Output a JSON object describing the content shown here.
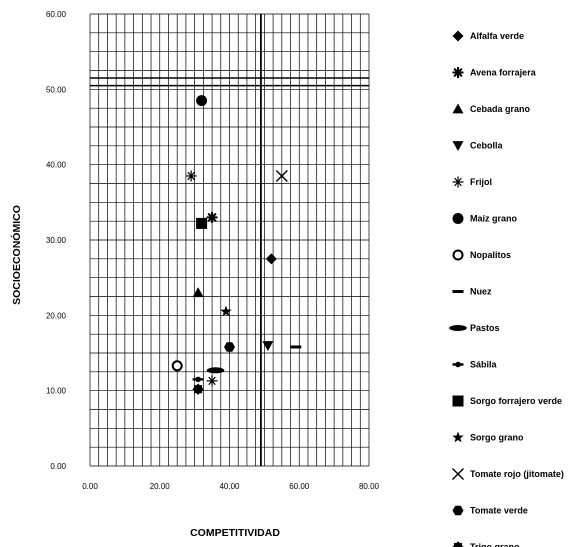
{
  "chart_data": {
    "type": "scatter",
    "xlabel": "COMPETITIVIDAD",
    "ylabel": "SOCIOECONÓMICO",
    "xlim": [
      0,
      80
    ],
    "ylim": [
      0,
      60
    ],
    "x_ticks": [
      "0.00",
      "20.00",
      "40.00",
      "60.00",
      "80.00"
    ],
    "y_ticks": [
      "0.00",
      "10.00",
      "20.00",
      "30.00",
      "40.00",
      "50.00",
      "60.00"
    ],
    "grid_x_step": 2.5,
    "grid_y_step": 2.5,
    "reference_lines": {
      "x": 49.0,
      "y": [
        50.5,
        51.5
      ]
    },
    "legend_position": "right",
    "series": [
      {
        "name": "Alfalfa verde",
        "marker": "diamond",
        "x": 52.0,
        "y": 27.5
      },
      {
        "name": "Avena forrajera",
        "marker": "asterisk",
        "x": 35.0,
        "y": 33.0
      },
      {
        "name": "Cebada grano",
        "marker": "triangle-up",
        "x": 31.0,
        "y": 23.0
      },
      {
        "name": "Cebolla",
        "marker": "triangle-down",
        "x": 51.0,
        "y": 16.0
      },
      {
        "name": "Frijol",
        "marker": "star6",
        "x": 29.0,
        "y": 38.5
      },
      {
        "name": "Maíz grano",
        "marker": "circle",
        "x": 32.0,
        "y": 48.5
      },
      {
        "name": "Nopalitos",
        "marker": "circle-open",
        "x": 25.0,
        "y": 13.3
      },
      {
        "name": "Nuez",
        "marker": "dash",
        "x": 59.0,
        "y": 15.8
      },
      {
        "name": "Pastos",
        "marker": "ellipse",
        "x": 36.0,
        "y": 12.7
      },
      {
        "name": "Sábila",
        "marker": "dot-bar",
        "x": 31.0,
        "y": 11.5
      },
      {
        "name": "Sorgo forrajero verde",
        "marker": "square",
        "x": 32.0,
        "y": 32.2
      },
      {
        "name": "Sorgo grano",
        "marker": "star",
        "x": 39.0,
        "y": 20.5
      },
      {
        "name": "Tomate rojo (jitomate)",
        "marker": "x",
        "x": 55.0,
        "y": 38.5
      },
      {
        "name": "Tomate verde",
        "marker": "hexagon",
        "x": 40.0,
        "y": 15.8
      },
      {
        "name": "Trigo grano",
        "marker": "gear",
        "x": 31.0,
        "y": 10.2
      }
    ],
    "extra_points": [
      {
        "marker": "star6",
        "x": 35.0,
        "y": 11.3
      }
    ]
  }
}
